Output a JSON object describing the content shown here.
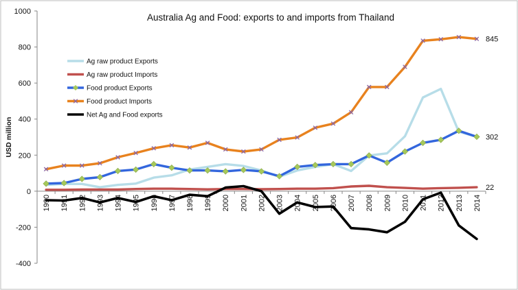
{
  "chart_data": {
    "type": "line",
    "title": "Australia Ag and Food: exports  to and imports from Thailand",
    "ylabel": "USD million",
    "xlabel": "",
    "ylim": [
      -400,
      1000
    ],
    "yticks": [
      -400,
      -200,
      0,
      200,
      400,
      600,
      800,
      1000
    ],
    "grid": false,
    "legend_position": "upper-left",
    "categories": [
      "1990",
      "1991",
      "1992",
      "1993",
      "1994",
      "1995",
      "1996",
      "1997",
      "1998",
      "1999",
      "2000",
      "2001",
      "2002",
      "2003",
      "2004",
      "2005",
      "2006",
      "2007",
      "2008",
      "2009",
      "2010",
      "2011",
      "2012",
      "2013",
      "2014"
    ],
    "series": [
      {
        "name": "Ag raw product Exports",
        "color": "#b7dde8",
        "marker": "none",
        "values": [
          35,
          40,
          40,
          22,
          35,
          42,
          75,
          88,
          120,
          135,
          150,
          140,
          115,
          80,
          115,
          135,
          150,
          112,
          198,
          210,
          305,
          520,
          568,
          330,
          302
        ]
      },
      {
        "name": "Ag raw product Imports",
        "color": "#c0504d",
        "marker": "none",
        "values": [
          8,
          8,
          9,
          9,
          9,
          12,
          14,
          14,
          12,
          10,
          12,
          12,
          11,
          12,
          14,
          14,
          17,
          26,
          30,
          22,
          18,
          14,
          17,
          19,
          22
        ]
      },
      {
        "name": "Food product Exports",
        "color": "#3366dd",
        "marker": "diamond",
        "marker_color": "#a6c95a",
        "values": [
          42,
          45,
          68,
          78,
          112,
          120,
          150,
          130,
          115,
          115,
          110,
          118,
          110,
          83,
          135,
          145,
          150,
          150,
          198,
          158,
          220,
          268,
          285,
          335,
          302
        ]
      },
      {
        "name": "Food product Imports",
        "color": "#e8821e",
        "marker": "x",
        "marker_color": "#8866aa",
        "values": [
          122,
          142,
          142,
          155,
          188,
          212,
          238,
          255,
          242,
          268,
          232,
          220,
          232,
          285,
          298,
          352,
          375,
          438,
          578,
          578,
          690,
          835,
          843,
          855,
          845
        ]
      },
      {
        "name": "Net Ag and Food exports",
        "color": "#000000",
        "marker": "none",
        "values": [
          -50,
          -52,
          -38,
          -62,
          -38,
          -60,
          -28,
          -50,
          -20,
          -28,
          20,
          28,
          0,
          -125,
          -62,
          -88,
          -85,
          -205,
          -212,
          -228,
          -170,
          -45,
          -8,
          -190,
          -265
        ]
      }
    ],
    "annotations": [
      {
        "text": "845",
        "series": "Food product Imports"
      },
      {
        "text": "302",
        "series": "Food product Exports"
      },
      {
        "text": "22",
        "series": "Ag raw product Imports"
      }
    ]
  }
}
